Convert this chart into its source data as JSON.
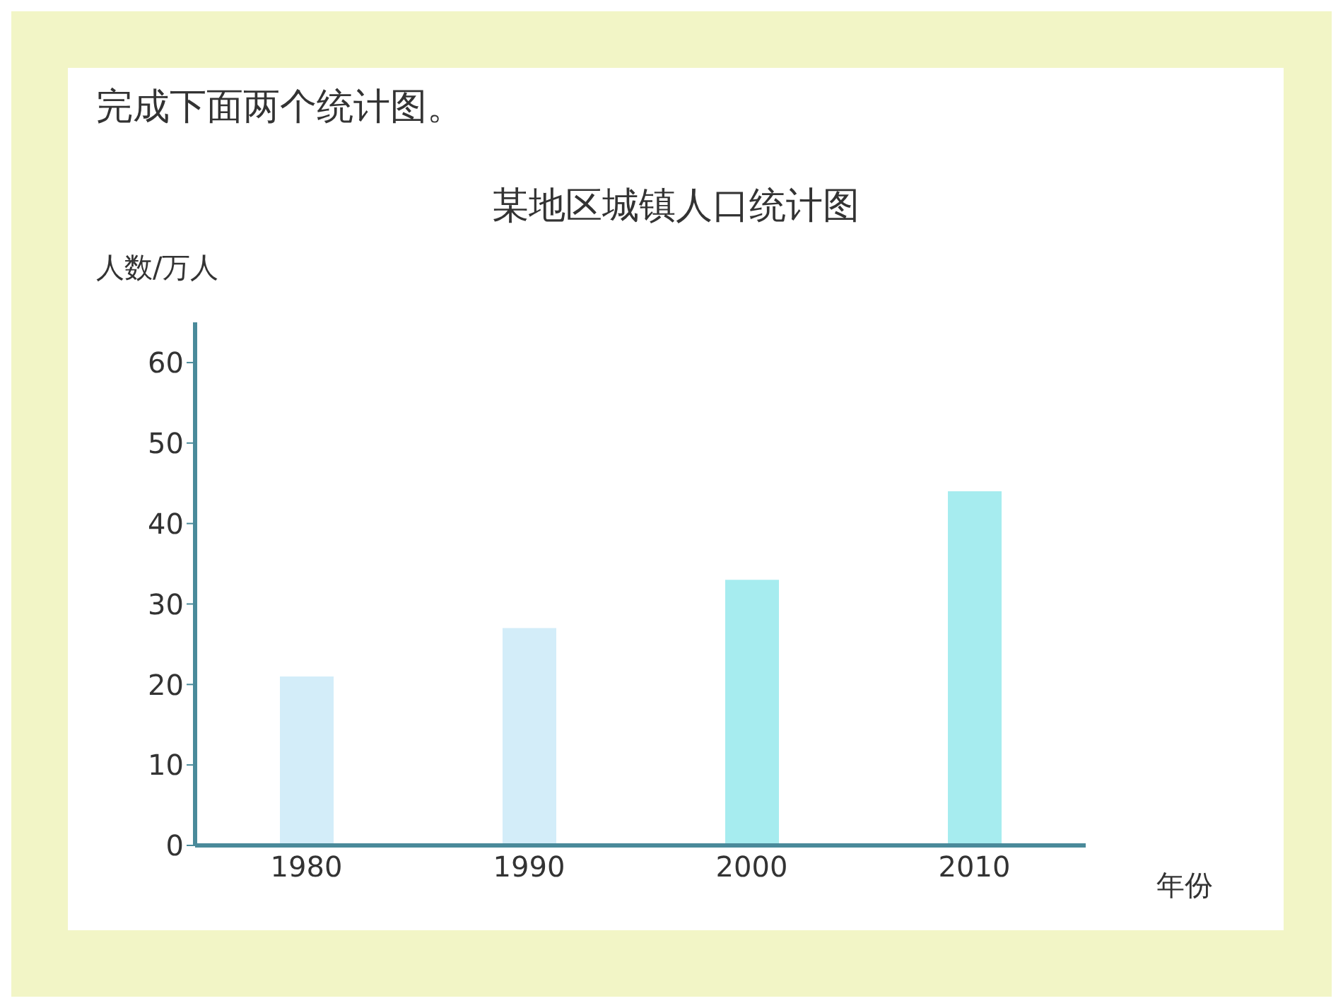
{
  "chart_data": {
    "type": "bar",
    "title": "某地区城镇人口统计图",
    "annotations": [
      "完成下面两个统计图。"
    ],
    "ylabel": "人数/万人",
    "xlabel": "年份",
    "categories": [
      "1980",
      "1990",
      "2000",
      "2010"
    ],
    "values": [
      21,
      27,
      33,
      44
    ],
    "colors": [
      "#d3edf9",
      "#d3edf9",
      "#a6ecef",
      "#a6ecef"
    ],
    "ylim": [
      0,
      65
    ],
    "yticks": [
      0,
      10,
      20,
      30,
      40,
      50,
      60
    ],
    "grid": false
  }
}
